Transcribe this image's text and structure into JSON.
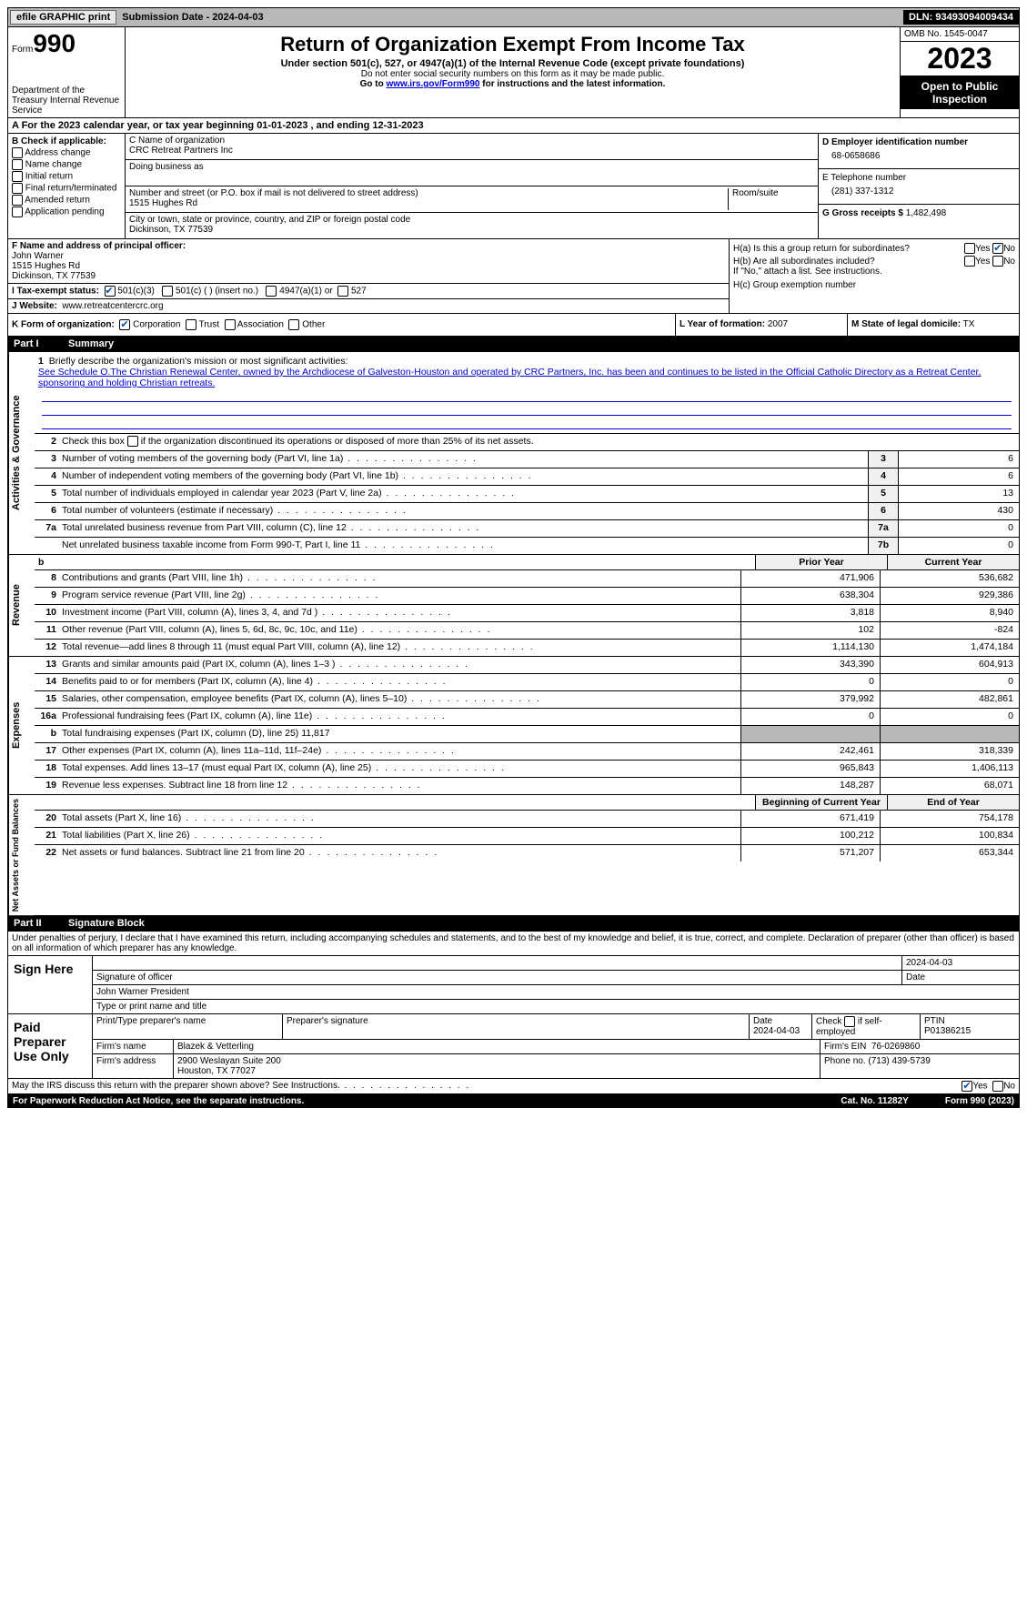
{
  "topbar": {
    "efile": "efile GRAPHIC print",
    "submission": "Submission Date - 2024-04-03",
    "dln": "DLN: 93493094009434"
  },
  "header": {
    "form_label": "Form",
    "form_num": "990",
    "dept": "Department of the Treasury Internal Revenue Service",
    "title": "Return of Organization Exempt From Income Tax",
    "sub": "Under section 501(c), 527, or 4947(a)(1) of the Internal Revenue Code (except private foundations)",
    "note1": "Do not enter social security numbers on this form as it may be made public.",
    "note2_pre": "Go to ",
    "note2_link": "www.irs.gov/Form990",
    "note2_post": " for instructions and the latest information.",
    "omb": "OMB No. 1545-0047",
    "year": "2023",
    "open": "Open to Public Inspection"
  },
  "row_a": "A For the 2023 calendar year, or tax year beginning 01-01-2023   , and ending 12-31-2023",
  "b": {
    "label": "B Check if applicable:",
    "opts": [
      "Address change",
      "Name change",
      "Initial return",
      "Final return/terminated",
      "Amended return",
      "Application pending"
    ]
  },
  "c": {
    "name_label": "C Name of organization",
    "name": "CRC Retreat Partners Inc",
    "dba_label": "Doing business as",
    "addr_label": "Number and street (or P.O. box if mail is not delivered to street address)",
    "addr": "1515 Hughes Rd",
    "room_label": "Room/suite",
    "city_label": "City or town, state or province, country, and ZIP or foreign postal code",
    "city": "Dickinson, TX   77539"
  },
  "d": {
    "ein_label": "D Employer identification number",
    "ein": "68-0658686",
    "tel_label": "E Telephone number",
    "tel": "(281) 337-1312",
    "gross_label": "G Gross receipts $",
    "gross": "1,482,498"
  },
  "f": {
    "label": "F  Name and address of principal officer:",
    "name": "John Warner",
    "addr1": "1515 Hughes Rd",
    "addr2": "Dickinson, TX  77539"
  },
  "i": {
    "label": "I   Tax-exempt status:",
    "o1": "501(c)(3)",
    "o2": "501(c) (  ) (insert no.)",
    "o3": "4947(a)(1) or",
    "o4": "527"
  },
  "j": {
    "label": "J   Website:",
    "val": "www.retreatcentercrc.org"
  },
  "h": {
    "ha": "H(a)  Is this a group return for subordinates?",
    "hb": "H(b)  Are all subordinates included?",
    "hb_note": "If \"No,\" attach a list. See instructions.",
    "hc": "H(c)  Group exemption number",
    "yes": "Yes",
    "no": "No"
  },
  "k": {
    "label": "K Form of organization:",
    "o1": "Corporation",
    "o2": "Trust",
    "o3": "Association",
    "o4": "Other"
  },
  "l": {
    "label": "L Year of formation:",
    "val": "2007"
  },
  "m": {
    "label": "M State of legal domicile:",
    "val": "TX"
  },
  "part1": {
    "num": "Part I",
    "title": "Summary"
  },
  "mission": {
    "num": "1",
    "label": "Briefly describe the organization's mission or most significant activities:",
    "text": "See Schedule O.The Christian Renewal Center, owned by the Archdiocese of Galveston-Houston and operated by CRC Partners, Inc. has been and continues to be listed in the Official Catholic Directory as a Retreat Center, sponsoring and holding Christian retreats."
  },
  "line2": {
    "num": "2",
    "text": "Check this box         if the organization discontinued its operations or disposed of more than 25% of its net assets."
  },
  "gov_lines": [
    {
      "n": "3",
      "d": "Number of voting members of the governing body (Part VI, line 1a)",
      "bn": "3",
      "v": "6"
    },
    {
      "n": "4",
      "d": "Number of independent voting members of the governing body (Part VI, line 1b)",
      "bn": "4",
      "v": "6"
    },
    {
      "n": "5",
      "d": "Total number of individuals employed in calendar year 2023 (Part V, line 2a)",
      "bn": "5",
      "v": "13"
    },
    {
      "n": "6",
      "d": "Total number of volunteers (estimate if necessary)",
      "bn": "6",
      "v": "430"
    },
    {
      "n": "7a",
      "d": "Total unrelated business revenue from Part VIII, column (C), line 12",
      "bn": "7a",
      "v": "0"
    },
    {
      "n": "",
      "d": "Net unrelated business taxable income from Form 990-T, Part I, line 11",
      "bn": "7b",
      "v": "0"
    }
  ],
  "rev_head": {
    "b": "b",
    "c1": "Prior Year",
    "c2": "Current Year"
  },
  "rev_lines": [
    {
      "n": "8",
      "d": "Contributions and grants (Part VIII, line 1h)",
      "p": "471,906",
      "c": "536,682"
    },
    {
      "n": "9",
      "d": "Program service revenue (Part VIII, line 2g)",
      "p": "638,304",
      "c": "929,386"
    },
    {
      "n": "10",
      "d": "Investment income (Part VIII, column (A), lines 3, 4, and 7d )",
      "p": "3,818",
      "c": "8,940"
    },
    {
      "n": "11",
      "d": "Other revenue (Part VIII, column (A), lines 5, 6d, 8c, 9c, 10c, and 11e)",
      "p": "102",
      "c": "-824"
    },
    {
      "n": "12",
      "d": "Total revenue—add lines 8 through 11 (must equal Part VIII, column (A), line 12)",
      "p": "1,114,130",
      "c": "1,474,184"
    }
  ],
  "exp_lines": [
    {
      "n": "13",
      "d": "Grants and similar amounts paid (Part IX, column (A), lines 1–3 )",
      "p": "343,390",
      "c": "604,913"
    },
    {
      "n": "14",
      "d": "Benefits paid to or for members (Part IX, column (A), line 4)",
      "p": "0",
      "c": "0"
    },
    {
      "n": "15",
      "d": "Salaries, other compensation, employee benefits (Part IX, column (A), lines 5–10)",
      "p": "379,992",
      "c": "482,861"
    },
    {
      "n": "16a",
      "d": "Professional fundraising fees (Part IX, column (A), line 11e)",
      "p": "0",
      "c": "0"
    },
    {
      "n": "b",
      "d": "Total fundraising expenses (Part IX, column (D), line 25) 11,817",
      "p": "",
      "c": "",
      "grey": true
    },
    {
      "n": "17",
      "d": "Other expenses (Part IX, column (A), lines 11a–11d, 11f–24e)",
      "p": "242,461",
      "c": "318,339"
    },
    {
      "n": "18",
      "d": "Total expenses. Add lines 13–17 (must equal Part IX, column (A), line 25)",
      "p": "965,843",
      "c": "1,406,113"
    },
    {
      "n": "19",
      "d": "Revenue less expenses. Subtract line 18 from line 12",
      "p": "148,287",
      "c": "68,071"
    }
  ],
  "net_head": {
    "c1": "Beginning of Current Year",
    "c2": "End of Year"
  },
  "net_lines": [
    {
      "n": "20",
      "d": "Total assets (Part X, line 16)",
      "p": "671,419",
      "c": "754,178"
    },
    {
      "n": "21",
      "d": "Total liabilities (Part X, line 26)",
      "p": "100,212",
      "c": "100,834"
    },
    {
      "n": "22",
      "d": "Net assets or fund balances. Subtract line 21 from line 20",
      "p": "571,207",
      "c": "653,344"
    }
  ],
  "part2": {
    "num": "Part II",
    "title": "Signature Block"
  },
  "sig": {
    "declare": "Under penalties of perjury, I declare that I have examined this return, including accompanying schedules and statements, and to the best of my knowledge and belief, it is true, correct, and complete. Declaration of preparer (other than officer) is based on all information of which preparer has any knowledge.",
    "sign_here": "Sign Here",
    "sig_officer_label": "Signature of officer",
    "sig_date": "2024-04-03",
    "date_label": "Date",
    "officer": "John Warner  President",
    "type_label": "Type or print name and title",
    "paid": "Paid Preparer Use Only",
    "print_label": "Print/Type preparer's name",
    "prep_sig_label": "Preparer's signature",
    "prep_date_label": "Date",
    "prep_date": "2024-04-03",
    "check_label": "Check         if self-employed",
    "ptin_label": "PTIN",
    "ptin": "P01386215",
    "firm_name_label": "Firm's name",
    "firm_name": "Blazek & Vetterling",
    "firm_ein_label": "Firm's EIN",
    "firm_ein": "76-0269860",
    "firm_addr_label": "Firm's address",
    "firm_addr1": "2900 Weslayan Suite 200",
    "firm_addr2": "Houston, TX  77027",
    "phone_label": "Phone no.",
    "phone": "(713) 439-5739"
  },
  "footer": {
    "discuss": "May the IRS discuss this return with the preparer shown above? See Instructions.",
    "yes": "Yes",
    "no": "No",
    "paperwork": "For Paperwork Reduction Act Notice, see the separate instructions.",
    "cat": "Cat. No. 11282Y",
    "form": "Form 990 (2023)"
  },
  "colors": {
    "link": "#0000cc",
    "check": "#0050b0",
    "grey": "#b8b8b8"
  }
}
